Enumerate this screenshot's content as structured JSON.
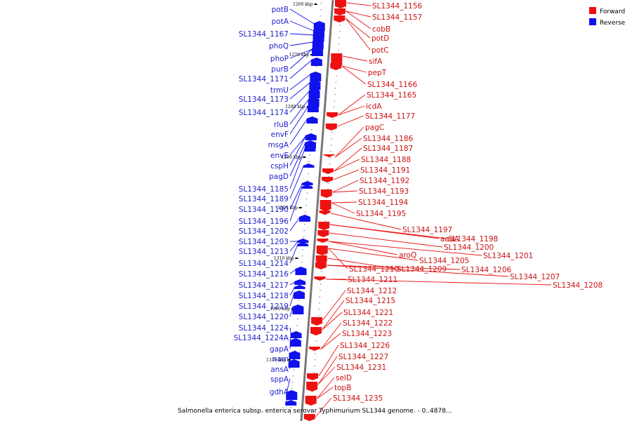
{
  "caption": "Salmonella enterica subsp. enterica serovar Typhimurium SL1344 genome. - 0..4878...",
  "legend": [
    {
      "label": "Forward",
      "color": "#ee1111"
    },
    {
      "label": "Reverse",
      "color": "#1111ee"
    }
  ],
  "colors": {
    "forward": "#ee1111",
    "reverse": "#1111ee",
    "backbone": "#777777"
  },
  "ticks": [
    "1260 kbp",
    "1270 kbp",
    "1280 kbp",
    "1290 kbp",
    "1300 kbp",
    "1310 kbp",
    "1320 kbp",
    "1330 kbp"
  ],
  "reverse_genes": [
    "potB",
    "potA",
    "SL1344_1167",
    "phoQ",
    "phoP",
    "purB",
    "SL1344_1171",
    "trmU",
    "SL1344_1173",
    "SL1344_1174",
    "rluB",
    "envF",
    "msgA",
    "envE",
    "cspH",
    "pagD",
    "SL1344_1185",
    "SL1344_1189",
    "SL1344_1190",
    "SL1344_1196",
    "SL1344_1202",
    "SL1344_1203",
    "SL1344_1213",
    "SL1344_1214",
    "SL1344_1216",
    "SL1344_1217",
    "SL1344_1218",
    "SL1344_1219",
    "SL1344_1220",
    "SL1344_1224",
    "SL1344_1224A",
    "gapA",
    "nam",
    "ansA",
    "sppA",
    "gdhA"
  ],
  "forward_genes": [
    "SL1344_1156",
    "SL1344_1157",
    "cobB",
    "potD",
    "potC",
    "sifA",
    "pepT",
    "SL1344_1166",
    "SL1344_1165",
    "icdA",
    "SL1344_1177",
    "pagC",
    "SL1344_1186",
    "SL1344_1187",
    "SL1344_1188",
    "SL1344_1191",
    "SL1344_1192",
    "SL1344_1193",
    "SL1344_1194",
    "SL1344_1195",
    "SL1344_1197",
    "aadA",
    "SL1344_1198",
    "SL1344_1200",
    "aroQ",
    "SL1344_1201",
    "SL1344_1205",
    "SL1344_1210",
    "SL1344_1209",
    "SL1344_1206",
    "SL1344_1207",
    "SL1344_1211",
    "SL1344_1208",
    "SL1344_1212",
    "SL1344_1215",
    "SL1344_1221",
    "SL1344_1222",
    "SL1344_1223",
    "SL1344_1226",
    "SL1344_1227",
    "SL1344_1231",
    "selD",
    "topB",
    "SL1344_1235"
  ]
}
